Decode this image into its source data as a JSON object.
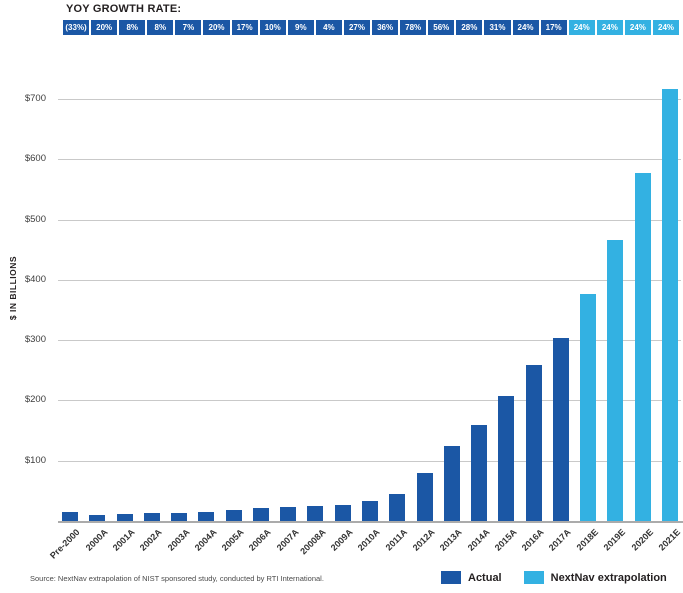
{
  "header": {
    "yoy_label": "YOY GROWTH RATE:"
  },
  "chart_data": {
    "type": "bar",
    "title": "",
    "xlabel": "",
    "ylabel": "$ IN BILLIONS",
    "ylim": [
      0,
      750
    ],
    "grid": true,
    "legend_position": "bottom-right",
    "yticks": [
      {
        "value": 100,
        "label": "$100"
      },
      {
        "value": 200,
        "label": "$200"
      },
      {
        "value": 300,
        "label": "$300"
      },
      {
        "value": 400,
        "label": "$400"
      },
      {
        "value": 500,
        "label": "$500"
      },
      {
        "value": 600,
        "label": "$600"
      },
      {
        "value": 700,
        "label": "$700"
      }
    ],
    "categories": [
      "Pre-2000",
      "2000A",
      "2001A",
      "2002A",
      "2003A",
      "2004A",
      "2005A",
      "2006A",
      "2007A",
      "20008A",
      "2009A",
      "2010A",
      "2011A",
      "2012A",
      "2013A",
      "2014A",
      "2015A",
      "2016A",
      "2017A",
      "2018E",
      "2019E",
      "2020E",
      "2021E"
    ],
    "values": [
      15,
      10,
      12,
      13,
      14,
      15,
      18,
      21,
      23,
      25,
      26,
      33,
      45,
      80,
      125,
      160,
      208,
      258,
      303,
      376,
      466,
      578,
      717
    ],
    "split": {
      "actual_count": 19,
      "extrapolation_count": 4
    },
    "yoy_boxes": [
      {
        "text": "(33%)",
        "kind": "actual"
      },
      {
        "text": "20%",
        "kind": "actual"
      },
      {
        "text": "8%",
        "kind": "actual"
      },
      {
        "text": "8%",
        "kind": "actual"
      },
      {
        "text": "7%",
        "kind": "actual"
      },
      {
        "text": "20%",
        "kind": "actual"
      },
      {
        "text": "17%",
        "kind": "actual"
      },
      {
        "text": "10%",
        "kind": "actual"
      },
      {
        "text": "9%",
        "kind": "actual"
      },
      {
        "text": "4%",
        "kind": "actual"
      },
      {
        "text": "27%",
        "kind": "actual"
      },
      {
        "text": "36%",
        "kind": "actual"
      },
      {
        "text": "78%",
        "kind": "actual"
      },
      {
        "text": "56%",
        "kind": "actual"
      },
      {
        "text": "28%",
        "kind": "actual"
      },
      {
        "text": "31%",
        "kind": "actual"
      },
      {
        "text": "24%",
        "kind": "actual"
      },
      {
        "text": "17%",
        "kind": "actual"
      },
      {
        "text": "24%",
        "kind": "extrapolation"
      },
      {
        "text": "24%",
        "kind": "extrapolation"
      },
      {
        "text": "24%",
        "kind": "extrapolation"
      },
      {
        "text": "24%",
        "kind": "extrapolation"
      }
    ],
    "colors": {
      "actual": "#1b57a5",
      "extrapolation": "#33b1e2"
    },
    "legend": [
      {
        "label": "Actual",
        "kind": "actual"
      },
      {
        "label": "NextNav extrapolation",
        "kind": "extrapolation"
      }
    ]
  },
  "footer": {
    "source": "Source: NextNav extrapolation of NIST sponsored study, conducted by RTI International."
  }
}
